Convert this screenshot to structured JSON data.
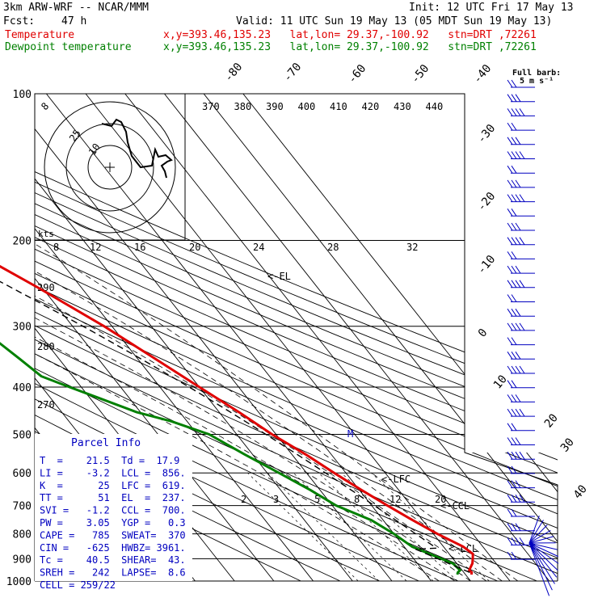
{
  "header": {
    "model": "3km ARW-WRF -- NCAR/MMM",
    "init": "Init: 12 UTC Fri 17 May 13",
    "fcst_label": "Fcst:",
    "fcst_value": "47 h",
    "valid": "Valid: 11 UTC Sun 19 May 13 (05 MDT Sun 19 May 13)",
    "temp_label": "Temperature",
    "temp_loc": "x,y=393.46,135.23   lat,lon= 29.37,-100.92   stn=DRT ,72261",
    "dew_label": "Dewpoint temperature",
    "dew_loc": "x,y=393.46,135.23   lat,lon= 29.37,-100.92   stn=DRT ,72261"
  },
  "colors": {
    "temperature": "#e00000",
    "dewpoint": "#008000",
    "parcel": "#000000",
    "info_text": "#0000c0",
    "barbs": "#0000c0"
  },
  "chart_data": {
    "type": "line",
    "subtype": "skew-t log-p",
    "pressure_levels": [
      100,
      200,
      300,
      400,
      500,
      600,
      700,
      800,
      900,
      1000
    ],
    "isotherm_labels": [
      "-80",
      "-70",
      "-60",
      "-50",
      "-40",
      "-30",
      "-20",
      "-10",
      "0",
      "10",
      "20",
      "30",
      "40"
    ],
    "theta_labels": [
      "370",
      "380",
      "390",
      "400",
      "410",
      "420",
      "430",
      "440"
    ],
    "theta_side_labels": [
      "290",
      "280",
      "270"
    ],
    "hodo_speed_labels": [
      "8",
      "12",
      "16",
      "20",
      "24",
      "28",
      "32"
    ],
    "hodo_ring_labels": [
      "8",
      "25",
      "10"
    ],
    "hodo_units": "kts",
    "mixing_ratio_labels": [
      "2",
      "3",
      "5",
      "8",
      "12",
      "20"
    ],
    "level_markers": [
      "<-EL",
      "M",
      "<-LFC",
      "<-CCL",
      "<-LCL"
    ],
    "series": [
      {
        "name": "Temperature",
        "p": [
          970,
          960,
          950,
          920,
          900,
          880,
          850,
          800,
          750,
          700,
          650,
          600,
          550,
          500,
          450,
          400,
          350,
          300,
          250,
          200,
          175,
          150,
          130,
          115,
          100
        ],
        "t": [
          21.5,
          22.0,
          21.8,
          24.0,
          25.0,
          26.0,
          25.0,
          21.0,
          17.5,
          14.0,
          10.5,
          7.0,
          3.5,
          -1.0,
          -5.0,
          -10.0,
          -15.5,
          -22.0,
          -31.0,
          -43.0,
          -50.0,
          -57.0,
          -61.0,
          -62.0,
          -63.0
        ]
      },
      {
        "name": "Dewpoint temperature",
        "p": [
          970,
          960,
          950,
          920,
          900,
          880,
          850,
          800,
          750,
          700,
          650,
          600,
          550,
          500,
          470,
          450,
          420,
          400,
          380,
          350,
          300,
          250,
          200,
          175,
          150,
          120,
          100
        ],
        "t": [
          17.9,
          18.5,
          19.5,
          19.0,
          17.0,
          15.0,
          12.0,
          10.0,
          7.0,
          1.0,
          -2.5,
          -7.0,
          -12.0,
          -17.0,
          -24.0,
          -31.0,
          -38.0,
          -43.0,
          -48.0,
          -50.0,
          -54.0,
          -61.0,
          -68.0,
          -73.0,
          -78.0,
          -86.0,
          -92.0
        ]
      }
    ],
    "xlabel": "",
    "ylabel": ""
  },
  "parcel_info": {
    "title": "Parcel Info",
    "rows": [
      "T  =    21.5  Td =  17.9",
      "LI =    -3.2  LCL =  856.",
      "K  =      25  LFC =  619.",
      "TT =      51  EL  =  237.",
      "SVI =   -1.2  CCL =  700.",
      "PW =    3.05  YGP =   0.3",
      "CAPE =   785  SWEAT=  370",
      "CIN =   -625  HWBZ= 3961.",
      "Tc =    40.5  SHEAR=  43.",
      "SREH =   242  LAPSE=  8.6",
      "CELL = 259/22"
    ]
  },
  "barb_legend": {
    "title": "Full barb:",
    "units": "5 m s⁻¹"
  }
}
